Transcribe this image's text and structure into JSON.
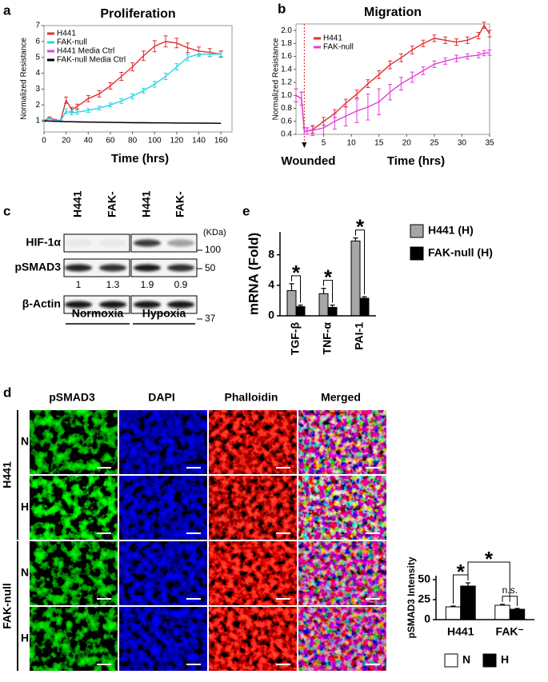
{
  "chart_data": [
    {
      "type": "line",
      "panel_label": "a",
      "title": "Proliferation",
      "x_label": "Time (hrs)",
      "y_label": "Normalized Resistance",
      "x": [
        0,
        5,
        10,
        15,
        20,
        25,
        30,
        40,
        50,
        60,
        70,
        80,
        90,
        100,
        110,
        120,
        130,
        140,
        150,
        160
      ],
      "xlim": [
        0,
        170
      ],
      "xticks": [
        0,
        20,
        40,
        60,
        80,
        100,
        120,
        140,
        160
      ],
      "ylim": [
        0.3,
        7
      ],
      "yticks": [
        1,
        2,
        3,
        4,
        5,
        6,
        7
      ],
      "legend": "upper left",
      "series": [
        {
          "name": "H441",
          "color": "#e03030",
          "values": [
            1.0,
            1.2,
            1.05,
            1.0,
            2.3,
            1.7,
            1.9,
            2.4,
            2.7,
            3.2,
            3.8,
            4.4,
            5.1,
            5.7,
            6.0,
            5.9,
            5.6,
            5.4,
            5.3,
            5.2
          ],
          "errors": [
            0.05,
            0.05,
            0.05,
            0.05,
            0.2,
            0.15,
            0.15,
            0.2,
            0.2,
            0.2,
            0.25,
            0.25,
            0.3,
            0.35,
            0.35,
            0.3,
            0.3,
            0.25,
            0.25,
            0.2
          ]
        },
        {
          "name": "FAK-null",
          "color": "#2ad4e0",
          "values": [
            1.0,
            1.15,
            1.0,
            1.0,
            1.6,
            1.5,
            1.55,
            1.65,
            1.8,
            2.0,
            2.25,
            2.55,
            2.9,
            3.3,
            3.8,
            4.4,
            5.0,
            5.2,
            5.2,
            5.2
          ],
          "errors": [
            0.05,
            0.05,
            0.05,
            0.05,
            0.15,
            0.12,
            0.12,
            0.12,
            0.12,
            0.12,
            0.15,
            0.15,
            0.15,
            0.18,
            0.2,
            0.2,
            0.2,
            0.15,
            0.15,
            0.15
          ]
        },
        {
          "name": "H441 Media Ctrl",
          "color": "#d946d9",
          "values": [
            1.0,
            1.0,
            0.98,
            0.97,
            0.95,
            0.95,
            0.94,
            0.93,
            0.92,
            0.91,
            0.9,
            0.89,
            0.88,
            0.88,
            0.87,
            0.87,
            0.86,
            0.86,
            0.85,
            0.85
          ]
        },
        {
          "name": "FAK-null Media Ctrl",
          "color": "#000000",
          "values": [
            1.0,
            0.98,
            0.97,
            0.96,
            0.94,
            0.94,
            0.93,
            0.92,
            0.91,
            0.9,
            0.89,
            0.88,
            0.88,
            0.87,
            0.87,
            0.86,
            0.86,
            0.85,
            0.85,
            0.84
          ]
        }
      ]
    },
    {
      "type": "line",
      "panel_label": "b",
      "title": "Migration",
      "x_label": "Time (hrs)",
      "y_label": "Normalized Resistance",
      "x": [
        0,
        1,
        1.5,
        2,
        3,
        5,
        7,
        9,
        11,
        13,
        15,
        17,
        19,
        21,
        23,
        25,
        27,
        29,
        31,
        33,
        34,
        35
      ],
      "xlim": [
        0,
        35
      ],
      "xticks": [
        5,
        10,
        15,
        20,
        25,
        30,
        35
      ],
      "ylim": [
        0.4,
        2.1
      ],
      "yticks": [
        0.4,
        0.6,
        0.8,
        {
          "value": 1,
          "label": "1.0"
        },
        1.2,
        1.4,
        1.6,
        1.8,
        {
          "value": 2,
          "label": "2.0"
        }
      ],
      "legend": "upper left",
      "annotations": [
        {
          "text": "Wounded",
          "x": 1.5
        }
      ],
      "series": [
        {
          "name": "H441",
          "color": "#e03030",
          "values": [
            1.0,
            0.95,
            0.45,
            0.45,
            0.47,
            0.6,
            0.72,
            0.88,
            1.02,
            1.18,
            1.32,
            1.47,
            1.58,
            1.7,
            1.8,
            1.88,
            1.85,
            1.82,
            1.85,
            1.92,
            2.08,
            1.95
          ],
          "errors": [
            0.1,
            0.1,
            0.05,
            0.05,
            0.05,
            0.06,
            0.06,
            0.06,
            0.06,
            0.06,
            0.06,
            0.06,
            0.06,
            0.06,
            0.05,
            0.05,
            0.05,
            0.05,
            0.05,
            0.05,
            0.05,
            0.05
          ]
        },
        {
          "name": "FAK-null",
          "color": "#e040d8",
          "values": [
            1.0,
            0.95,
            0.45,
            0.45,
            0.46,
            0.5,
            0.6,
            0.68,
            0.76,
            0.82,
            0.9,
            1.05,
            1.18,
            1.28,
            1.38,
            1.48,
            1.53,
            1.57,
            1.6,
            1.62,
            1.65,
            1.66
          ],
          "errors": [
            0.1,
            0.1,
            0.05,
            0.05,
            0.08,
            0.1,
            0.12,
            0.15,
            0.18,
            0.2,
            0.2,
            0.12,
            0.1,
            0.08,
            0.06,
            0.05,
            0.05,
            0.05,
            0.04,
            0.04,
            0.04,
            0.04
          ]
        }
      ]
    },
    {
      "type": "bar",
      "panel_label": "e",
      "y_label": "mRNA (Fold)",
      "categories": [
        "TGF-β",
        "TNF-α",
        "PAI-1"
      ],
      "ylim": [
        0,
        11
      ],
      "yticks": [
        0,
        4,
        8
      ],
      "legend": "right",
      "annotations": [
        "*",
        "*",
        "*"
      ],
      "series": [
        {
          "name": "H441 (H)",
          "color": "#a6a6a6",
          "values": [
            3.3,
            2.9,
            9.8
          ],
          "errors": [
            0.9,
            0.7,
            0.4
          ]
        },
        {
          "name": "FAK-null (H)",
          "color": "#000000",
          "values": [
            1.2,
            1.1,
            2.3
          ],
          "errors": [
            0.2,
            0.3,
            0.2
          ]
        }
      ]
    },
    {
      "type": "bar",
      "y_label": "pSMAD3 Intensity",
      "categories": [
        "H441",
        "FAK⁻"
      ],
      "ylim": [
        0,
        55
      ],
      "yticks": [
        0,
        25,
        50
      ],
      "legend": "bottom",
      "annotations": [
        "*",
        "*",
        "n.s."
      ],
      "series": [
        {
          "name": "N",
          "color": "#ffffff",
          "values": [
            16,
            18
          ],
          "errors": [
            1,
            1.2
          ]
        },
        {
          "name": "H",
          "color": "#000000",
          "values": [
            42,
            13
          ],
          "errors": [
            4,
            1
          ]
        }
      ]
    }
  ],
  "blot": {
    "panel_label": "c",
    "lanes": [
      "H441",
      "FAK-",
      "H441",
      "FAK-"
    ],
    "proteins": [
      "HIF-1α",
      "pSMAD3",
      "β-Actin"
    ],
    "ratios": [
      1,
      1.3,
      1.9,
      0.9
    ],
    "unit": "(KDa)",
    "markers": [
      100,
      50,
      37
    ],
    "conditions": [
      "Normoxia",
      "Hypoxia"
    ]
  },
  "images": {
    "panel_label": "d",
    "columns": [
      "pSMAD3",
      "DAPI",
      "Phalloidin",
      "Merged"
    ],
    "groups": [
      {
        "name": "H441",
        "rows": [
          "N",
          "H"
        ]
      },
      {
        "name": "FAK-null",
        "rows": [
          "N",
          "H"
        ]
      }
    ]
  }
}
